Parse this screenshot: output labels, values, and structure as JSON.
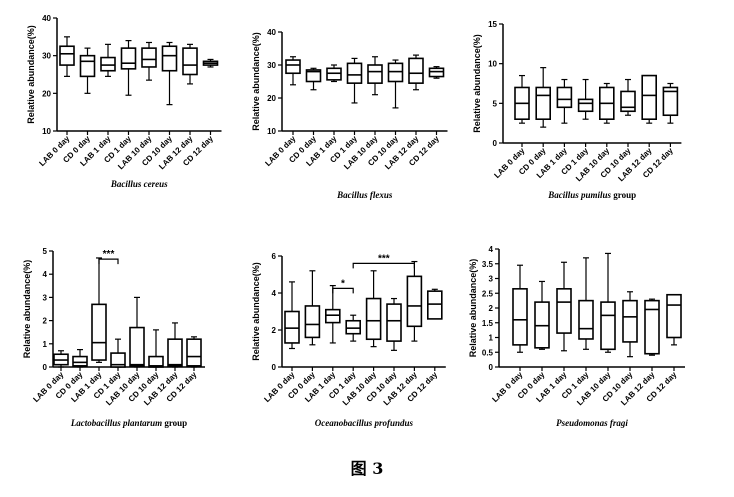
{
  "figure_caption": "图 3",
  "chart_data": [
    {
      "type": "boxplot",
      "title": "Bacillus cereus",
      "title_suffix": "",
      "ylabel": "Relative abundance(%)",
      "ylim": [
        10,
        40
      ],
      "yticks": [
        10,
        20,
        30,
        40
      ],
      "categories": [
        "LAB 0 day",
        "CD 0 day",
        "LAB 1 day",
        "CD 1 day",
        "LAB 10 day",
        "CD 10 day",
        "LAB 12 day",
        "CD 12 day"
      ],
      "boxes": [
        {
          "min": 24.5,
          "q1": 27.5,
          "median": 30.5,
          "q3": 32.5,
          "max": 35.0
        },
        {
          "min": 20.0,
          "q1": 24.5,
          "median": 28.5,
          "q3": 30.0,
          "max": 32.0
        },
        {
          "min": 24.5,
          "q1": 26.0,
          "median": 27.5,
          "q3": 29.5,
          "max": 33.0
        },
        {
          "min": 19.5,
          "q1": 26.5,
          "median": 28.0,
          "q3": 32.0,
          "max": 34.0
        },
        {
          "min": 23.5,
          "q1": 27.0,
          "median": 29.0,
          "q3": 32.0,
          "max": 33.5
        },
        {
          "min": 17.0,
          "q1": 26.0,
          "median": 30.0,
          "q3": 32.5,
          "max": 33.5
        },
        {
          "min": 22.5,
          "q1": 25.0,
          "median": 27.5,
          "q3": 32.0,
          "max": 33.0
        },
        {
          "min": 27.0,
          "q1": 27.5,
          "median": 28.0,
          "q3": 28.5,
          "max": 29.0
        }
      ],
      "annotations": []
    },
    {
      "type": "boxplot",
      "title": "Bacillus flexus",
      "title_suffix": "",
      "ylabel": "Relative abundance(%)",
      "ylim": [
        10,
        40
      ],
      "yticks": [
        10,
        20,
        30,
        40
      ],
      "categories": [
        "LAB 0 day",
        "CD 0 day",
        "LAB 1 day",
        "CD 1 day",
        "LAB 10 day",
        "CD 10 day",
        "LAB 12 day",
        "CD 12 day"
      ],
      "boxes": [
        {
          "min": 24.0,
          "q1": 27.5,
          "median": 30.0,
          "q3": 31.5,
          "max": 32.5
        },
        {
          "min": 22.5,
          "q1": 25.0,
          "median": 28.0,
          "q3": 28.5,
          "max": 29.0
        },
        {
          "min": 25.0,
          "q1": 25.5,
          "median": 27.5,
          "q3": 29.0,
          "max": 30.0
        },
        {
          "min": 18.5,
          "q1": 24.5,
          "median": 27.0,
          "q3": 30.5,
          "max": 32.0
        },
        {
          "min": 21.0,
          "q1": 24.5,
          "median": 28.0,
          "q3": 30.0,
          "max": 32.5
        },
        {
          "min": 17.0,
          "q1": 25.0,
          "median": 28.0,
          "q3": 30.5,
          "max": 31.5
        },
        {
          "min": 22.5,
          "q1": 24.5,
          "median": 27.5,
          "q3": 32.0,
          "max": 33.0
        },
        {
          "min": 26.0,
          "q1": 26.5,
          "median": 28.0,
          "q3": 29.0,
          "max": 29.5
        }
      ],
      "annotations": []
    },
    {
      "type": "boxplot",
      "title": "Bacillus pumilus",
      "title_suffix": " group",
      "ylabel": "Relative abundance(%)",
      "ylim": [
        0,
        15
      ],
      "yticks": [
        0,
        5,
        10,
        15
      ],
      "categories": [
        "LAB 0 day",
        "CD 0 day",
        "LAB 1 day",
        "CD 1 day",
        "LAB 10 day",
        "CD 10 day",
        "LAB 12 day",
        "CD 12 day"
      ],
      "boxes": [
        {
          "min": 2.5,
          "q1": 3.0,
          "median": 5.0,
          "q3": 7.0,
          "max": 8.5
        },
        {
          "min": 2.0,
          "q1": 3.0,
          "median": 6.0,
          "q3": 7.0,
          "max": 9.5
        },
        {
          "min": 2.5,
          "q1": 4.5,
          "median": 5.5,
          "q3": 7.0,
          "max": 8.0
        },
        {
          "min": 3.0,
          "q1": 4.0,
          "median": 5.0,
          "q3": 5.5,
          "max": 8.0
        },
        {
          "min": 2.5,
          "q1": 3.0,
          "median": 5.0,
          "q3": 7.0,
          "max": 7.5
        },
        {
          "min": 3.5,
          "q1": 4.0,
          "median": 4.5,
          "q3": 6.5,
          "max": 8.0
        },
        {
          "min": 2.5,
          "q1": 3.0,
          "median": 6.0,
          "q3": 8.5,
          "max": 8.5
        },
        {
          "min": 2.5,
          "q1": 3.5,
          "median": 6.5,
          "q3": 7.0,
          "max": 7.5
        }
      ],
      "annotations": []
    },
    {
      "type": "boxplot",
      "title": "Lactobacillus plantarum",
      "title_suffix": " group",
      "ylabel": "Relative abundance(%)",
      "ylim": [
        0,
        5
      ],
      "yticks": [
        0,
        1,
        2,
        3,
        4,
        5
      ],
      "categories": [
        "LAB 0 day",
        "CD 0 day",
        "LAB 1 day",
        "CD 1 day",
        "LAB 10 day",
        "CD 10 day",
        "LAB 12 day",
        "CD 12 day"
      ],
      "boxes": [
        {
          "min": 0.0,
          "q1": 0.1,
          "median": 0.3,
          "q3": 0.55,
          "max": 0.7
        },
        {
          "min": 0.0,
          "q1": 0.05,
          "median": 0.2,
          "q3": 0.45,
          "max": 0.75
        },
        {
          "min": 0.2,
          "q1": 0.3,
          "median": 1.05,
          "q3": 2.7,
          "max": 4.7
        },
        {
          "min": 0.0,
          "q1": 0.0,
          "median": 0.1,
          "q3": 0.6,
          "max": 1.2
        },
        {
          "min": 0.0,
          "q1": 0.05,
          "median": 0.1,
          "q3": 1.7,
          "max": 3.0
        },
        {
          "min": 0.0,
          "q1": 0.0,
          "median": 0.05,
          "q3": 0.45,
          "max": 1.6
        },
        {
          "min": 0.0,
          "q1": 0.05,
          "median": 0.1,
          "q3": 1.2,
          "max": 1.9
        },
        {
          "min": 0.0,
          "q1": 0.05,
          "median": 0.45,
          "q3": 1.2,
          "max": 1.3
        }
      ],
      "annotations": [
        {
          "from": 2,
          "to": 3,
          "y": 4.65,
          "text": "***"
        }
      ]
    },
    {
      "type": "boxplot",
      "title": "Oceanobacillus profundus",
      "title_suffix": "",
      "ylabel": "Relative abundance(%)",
      "ylim": [
        0,
        6
      ],
      "yticks": [
        0,
        2,
        4,
        6
      ],
      "categories": [
        "LAB 0 day",
        "CD 0 day",
        "LAB 1 day",
        "CD 1 day",
        "LAB 10 day",
        "CD 10 day",
        "LAB 12 day",
        "CD 12 day"
      ],
      "boxes": [
        {
          "min": 1.0,
          "q1": 1.3,
          "median": 2.1,
          "q3": 3.0,
          "max": 4.6
        },
        {
          "min": 1.2,
          "q1": 1.6,
          "median": 2.3,
          "q3": 3.3,
          "max": 5.2
        },
        {
          "min": 1.3,
          "q1": 2.4,
          "median": 2.8,
          "q3": 3.1,
          "max": 4.4
        },
        {
          "min": 1.4,
          "q1": 1.8,
          "median": 2.1,
          "q3": 2.5,
          "max": 2.8
        },
        {
          "min": 1.1,
          "q1": 1.5,
          "median": 2.5,
          "q3": 3.7,
          "max": 5.2
        },
        {
          "min": 0.9,
          "q1": 1.4,
          "median": 2.5,
          "q3": 3.4,
          "max": 3.7
        },
        {
          "min": 1.4,
          "q1": 2.2,
          "median": 3.3,
          "q3": 4.9,
          "max": 5.7
        },
        {
          "min": 2.6,
          "q1": 2.6,
          "median": 3.4,
          "q3": 4.1,
          "max": 4.2
        }
      ],
      "annotations": [
        {
          "from": 2,
          "to": 3,
          "y": 4.25,
          "text": "*"
        },
        {
          "from": 3,
          "to": 6,
          "y": 5.6,
          "text": "***"
        }
      ]
    },
    {
      "type": "boxplot",
      "title": "Pseudomonas fragi",
      "title_suffix": "",
      "ylabel": "Relative abundance(%)",
      "ylim": [
        0,
        4
      ],
      "yticks": [
        0,
        0.5,
        1,
        1.5,
        2,
        2.5,
        3,
        3.5,
        4
      ],
      "categories": [
        "LAB 0 day",
        "CD 0 day",
        "LAB 1 day",
        "CD 1 day",
        "LAB 10 day",
        "CD 10 day",
        "LAB 12 day",
        "CD 12 day"
      ],
      "boxes": [
        {
          "min": 0.5,
          "q1": 0.75,
          "median": 1.6,
          "q3": 2.65,
          "max": 3.45
        },
        {
          "min": 0.6,
          "q1": 0.65,
          "median": 1.4,
          "q3": 2.2,
          "max": 2.9
        },
        {
          "min": 0.55,
          "q1": 1.15,
          "median": 2.2,
          "q3": 2.65,
          "max": 3.55
        },
        {
          "min": 0.6,
          "q1": 0.95,
          "median": 1.3,
          "q3": 2.25,
          "max": 3.7
        },
        {
          "min": 0.5,
          "q1": 0.6,
          "median": 1.75,
          "q3": 2.2,
          "max": 3.85
        },
        {
          "min": 0.35,
          "q1": 0.85,
          "median": 1.7,
          "q3": 2.25,
          "max": 2.55
        },
        {
          "min": 0.4,
          "q1": 0.45,
          "median": 1.95,
          "q3": 2.25,
          "max": 2.3
        },
        {
          "min": 0.75,
          "q1": 1.0,
          "median": 2.1,
          "q3": 2.45,
          "max": 2.45
        }
      ],
      "annotations": []
    }
  ]
}
